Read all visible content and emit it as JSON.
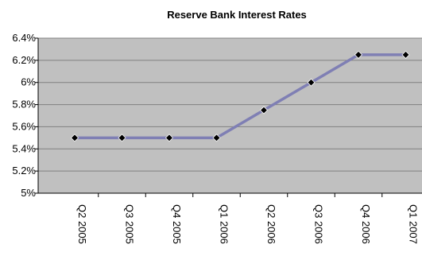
{
  "chart_data": {
    "type": "line",
    "title": "Reserve Bank Interest Rates",
    "xlabel": "",
    "ylabel": "",
    "categories": [
      "Q2 2005",
      "Q3 2005",
      "Q4 2005",
      "Q1 2006",
      "Q2 2006",
      "Q3 2006",
      "Q4 2006",
      "Q1 2007"
    ],
    "series": [
      {
        "values": [
          5.5,
          5.5,
          5.5,
          5.5,
          5.75,
          6.0,
          6.25,
          6.25
        ]
      }
    ],
    "ylim": [
      5.0,
      6.4
    ],
    "yticks": [
      {
        "value": 5.0,
        "label": "5%"
      },
      {
        "value": 5.2,
        "label": "5.2%"
      },
      {
        "value": 5.4,
        "label": "5.4%"
      },
      {
        "value": 5.6,
        "label": "5.6%"
      },
      {
        "value": 5.8,
        "label": "5.8%"
      },
      {
        "value": 6.0,
        "label": "6%"
      },
      {
        "value": 6.2,
        "label": "6.2%"
      },
      {
        "value": 6.4,
        "label": "6.4%"
      }
    ],
    "grid": true,
    "legend": "none",
    "colors": {
      "plot_background": "#c0c0c0",
      "line": "#7f7fb4",
      "marker": "#000000",
      "gridline": "#808080"
    }
  }
}
